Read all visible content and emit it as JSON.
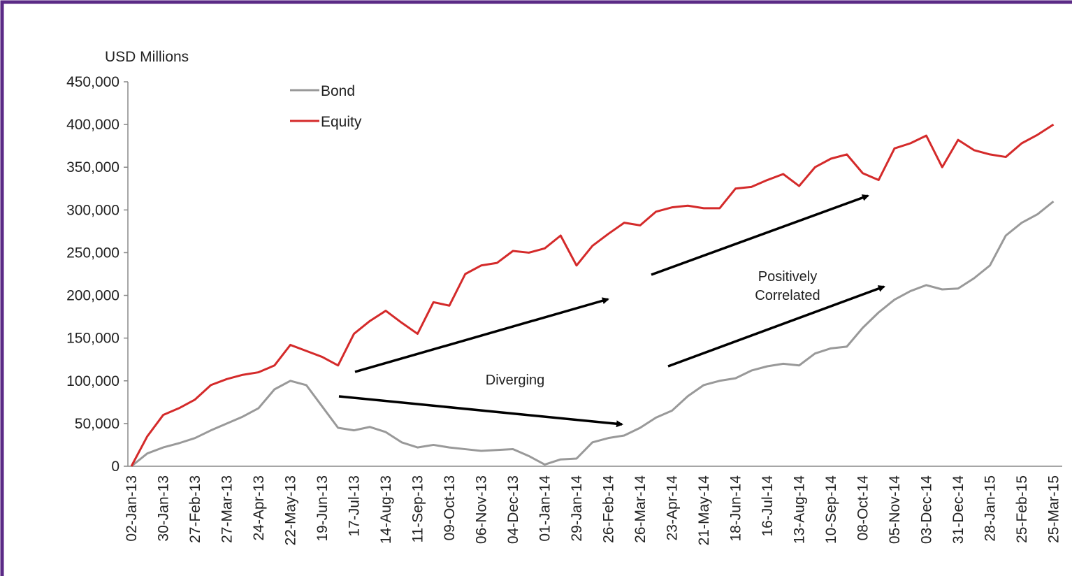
{
  "chart_data": {
    "type": "line",
    "y_axis_label": "USD Millions",
    "annotations": [
      "Diverging",
      "Positively Correlated"
    ],
    "legend": "top-left",
    "categories": [
      "02-Jan-13",
      null,
      "30-Jan-13",
      null,
      "27-Feb-13",
      null,
      "27-Mar-13",
      null,
      "24-Apr-13",
      null,
      "22-May-13",
      null,
      "19-Jun-13",
      null,
      "17-Jul-13",
      null,
      "14-Aug-13",
      null,
      "11-Sep-13",
      null,
      "09-Oct-13",
      null,
      "06-Nov-13",
      null,
      "04-Dec-13",
      null,
      "01-Jan-14",
      null,
      "29-Jan-14",
      null,
      "26-Feb-14",
      null,
      "26-Mar-14",
      null,
      "23-Apr-14",
      null,
      "21-May-14",
      null,
      "18-Jun-14",
      null,
      "16-Jul-14",
      null,
      "13-Aug-14",
      null,
      "10-Sep-14",
      null,
      "08-Oct-14",
      null,
      "05-Nov-14",
      null,
      "03-Dec-14",
      null,
      "31-Dec-14",
      null,
      "28-Jan-15",
      null,
      "25-Feb-15",
      null,
      "25-Mar-15"
    ],
    "series": [
      {
        "name": "Bond",
        "color": "#999999",
        "values": [
          0,
          15000,
          22000,
          27000,
          33000,
          42000,
          50000,
          58000,
          68000,
          90000,
          100000,
          95000,
          70000,
          45000,
          42000,
          46000,
          40000,
          28000,
          22000,
          25000,
          22000,
          20000,
          18000,
          19000,
          20000,
          12000,
          2000,
          8000,
          9000,
          28000,
          33000,
          36000,
          45000,
          57000,
          65000,
          82000,
          95000,
          100000,
          103000,
          112000,
          117000,
          120000,
          118000,
          132000,
          138000,
          140000,
          162000,
          180000,
          195000,
          205000,
          212000,
          207000,
          208000,
          220000,
          235000,
          270000,
          285000,
          295000,
          310000
        ]
      },
      {
        "name": "Equity",
        "color": "#d42a2a",
        "values": [
          0,
          35000,
          60000,
          68000,
          78000,
          95000,
          102000,
          107000,
          110000,
          118000,
          142000,
          135000,
          128000,
          118000,
          155000,
          170000,
          182000,
          168000,
          155000,
          192000,
          188000,
          225000,
          235000,
          238000,
          252000,
          250000,
          255000,
          270000,
          235000,
          258000,
          272000,
          285000,
          282000,
          298000,
          303000,
          305000,
          302000,
          302000,
          325000,
          327000,
          335000,
          342000,
          328000,
          350000,
          360000,
          365000,
          343000,
          335000,
          372000,
          378000,
          387000,
          350000,
          382000,
          370000,
          365000,
          362000,
          378000,
          388000,
          400000
        ]
      }
    ],
    "ylim": [
      0,
      450000
    ],
    "yticks": [
      0,
      {
        "value": 50000,
        "label": "50,000"
      },
      {
        "value": 100000,
        "label": "100,000"
      },
      {
        "value": 150000,
        "label": "150,000"
      },
      {
        "value": 200000,
        "label": "200,000"
      },
      {
        "value": 250000,
        "label": "250,000"
      },
      {
        "value": 300000,
        "label": "300,000"
      },
      {
        "value": 350000,
        "label": "350,000"
      },
      {
        "value": 400000,
        "label": "400,000"
      },
      {
        "value": 450000,
        "label": "450,000"
      }
    ]
  }
}
